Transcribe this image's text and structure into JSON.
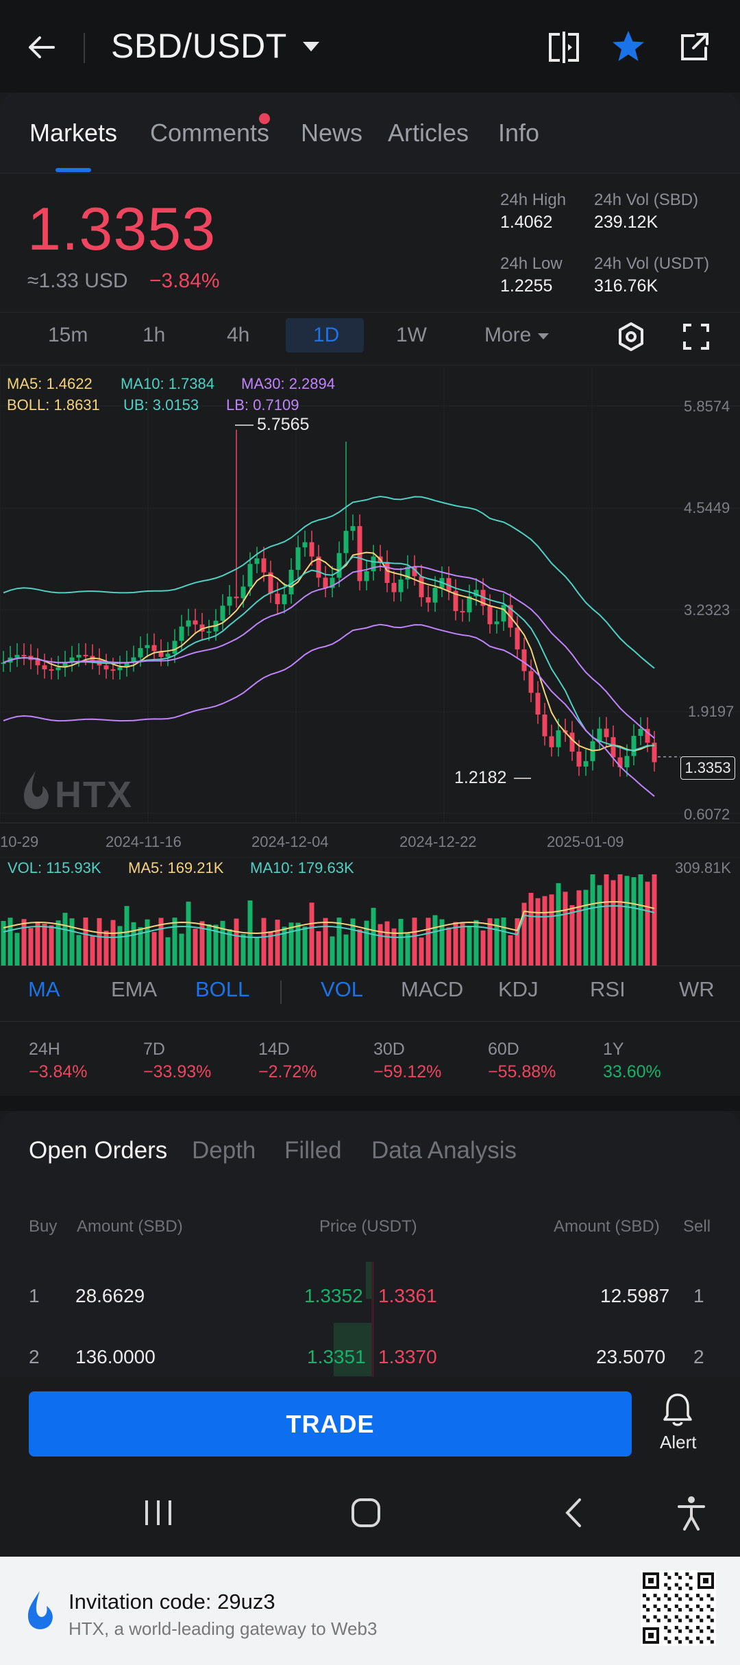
{
  "header": {
    "title": "SBD/USDT"
  },
  "tabs": [
    {
      "label": "Markets"
    },
    {
      "label": "Comments"
    },
    {
      "label": "News"
    },
    {
      "label": "Articles"
    },
    {
      "label": "Info"
    }
  ],
  "ticker": {
    "price": "1.3353",
    "usd": "≈1.33 USD",
    "change": "−3.84%",
    "high_label": "24h High",
    "high": "1.4062",
    "low_label": "24h Low",
    "low": "1.2255",
    "vol_sbd_label": "24h Vol (SBD)",
    "vol_sbd": "239.12K",
    "vol_usdt_label": "24h Vol (USDT)",
    "vol_usdt": "316.76K"
  },
  "intervals": [
    "15m",
    "1h",
    "4h",
    "1D",
    "1W",
    "More"
  ],
  "indicators_top": {
    "ma5": "MA5: 1.4622",
    "ma10": "MA10: 1.7384",
    "ma30": "MA30: 2.2894",
    "boll": "BOLL: 1.8631",
    "ub": "UB: 3.0153",
    "lb": "LB: 0.7109"
  },
  "chart_labels": {
    "y_ticks": [
      "5.8574",
      "4.5449",
      "3.2323",
      "1.9197",
      "0.6072"
    ],
    "x_ticks": [
      "10-29",
      "2024-11-16",
      "2024-12-04",
      "2024-12-22",
      "2025-01-09"
    ],
    "high_mark": "5.7565",
    "low_mark": "1.2182",
    "last_price": "1.3353",
    "watermark": "HTX"
  },
  "volume": {
    "vol": "VOL: 115.93K",
    "ma5": "MA5: 169.21K",
    "ma10": "MA10: 179.63K",
    "max": "309.81K"
  },
  "indicator_tabs": [
    "MA",
    "EMA",
    "BOLL",
    "VOL",
    "MACD",
    "KDJ",
    "RSI",
    "WR"
  ],
  "performance": [
    {
      "label": "24H",
      "value": "−3.84%"
    },
    {
      "label": "7D",
      "value": "−33.93%"
    },
    {
      "label": "14D",
      "value": "−2.72%"
    },
    {
      "label": "30D",
      "value": "−59.12%"
    },
    {
      "label": "60D",
      "value": "−55.88%"
    },
    {
      "label": "1Y",
      "value": "33.60%"
    }
  ],
  "orderbook": {
    "tabs": [
      "Open Orders",
      "Depth",
      "Filled",
      "Data Analysis"
    ],
    "headers": {
      "buy": "Buy",
      "amount_left": "Amount (SBD)",
      "price": "Price (USDT)",
      "amount_right": "Amount (SBD)",
      "sell": "Sell"
    },
    "rows": [
      {
        "idx": "1",
        "buy_amount": "28.6629",
        "bid": "1.3352",
        "ask": "1.3361",
        "sell_amount": "12.5987",
        "idx_r": "1"
      },
      {
        "idx": "2",
        "buy_amount": "136.0000",
        "bid": "1.3351",
        "ask": "1.3370",
        "sell_amount": "23.5070",
        "idx_r": "2"
      }
    ]
  },
  "actions": {
    "trade": "TRADE",
    "alert": "Alert"
  },
  "ad": {
    "title": "Invitation code: 29uz3",
    "subtitle": "HTX, a world-leading gateway to Web3"
  },
  "colors": {
    "up": "#17b26a",
    "down": "#f0455f",
    "accent": "#1a73e8",
    "ma5": "#f6d37a",
    "ma10": "#4fd1c5",
    "ma30": "#c084fc"
  }
}
